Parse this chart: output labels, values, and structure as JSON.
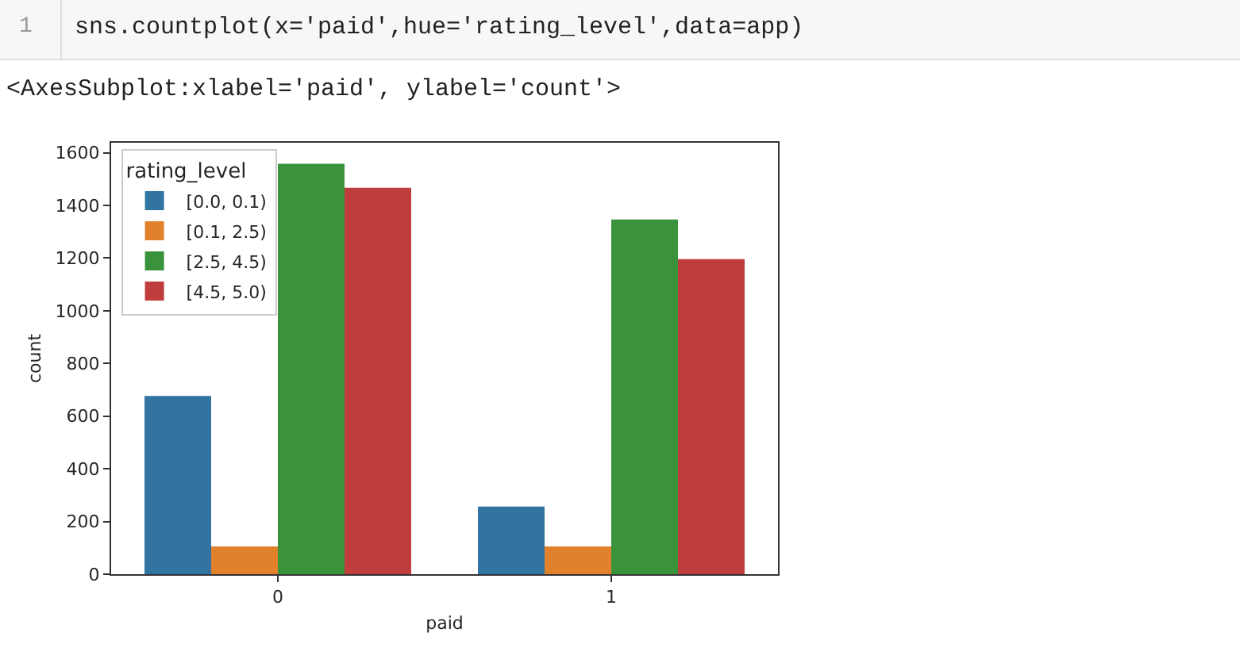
{
  "chart_data": {
    "type": "bar",
    "annotations": [
      "1",
      "sns.countplot(x='paid',hue='rating_level',data=app)",
      "<AxesSubplot:xlabel='paid', ylabel='count'>"
    ],
    "xlabel": "paid",
    "ylabel": "count",
    "legend_title": "rating_level",
    "categories": [
      "0",
      "1"
    ],
    "series": [
      {
        "name": "[0.0, 0.1)",
        "color": "#3274a1",
        "values": [
          677,
          257
        ]
      },
      {
        "name": "[0.1, 2.5)",
        "color": "#e1812c",
        "values": [
          105,
          105
        ]
      },
      {
        "name": "[2.5, 4.5)",
        "color": "#3a923a",
        "values": [
          1558,
          1347
        ]
      },
      {
        "name": "[4.5, 5.0)",
        "color": "#c03d3e",
        "values": [
          1467,
          1196
        ]
      }
    ],
    "ylim": [
      0,
      1638
    ],
    "yticks": [
      0,
      200,
      400,
      600,
      800,
      1000,
      1200,
      1400,
      1600
    ],
    "grid": false,
    "legend": "top left"
  }
}
